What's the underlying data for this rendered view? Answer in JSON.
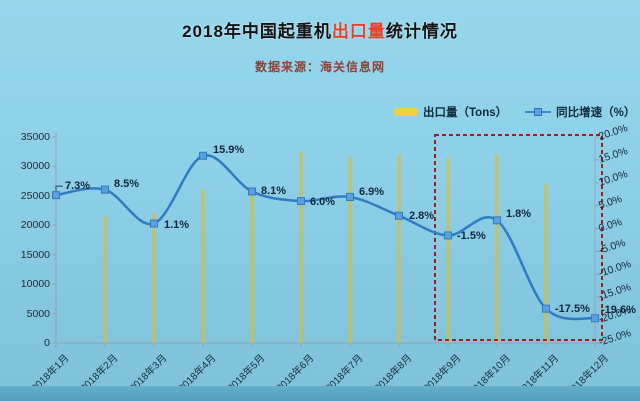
{
  "title": {
    "prefix": "2018年中国起重机",
    "highlight": "出口量",
    "suffix": "统计情况"
  },
  "subtitle": "数据来源：海关信息网",
  "legend": [
    {
      "label": "出口量（Tons）",
      "swatch": "yellow-bar",
      "color": "#f2d13d"
    },
    {
      "label": "同比增速（%）",
      "swatch": "blue-line-marker",
      "color": "#3b86d1"
    }
  ],
  "colors": {
    "background": "#8ccfe6",
    "title_highlight": "#e8402a",
    "subtitle": "#8e4136",
    "bar": "#cdbd55",
    "line": "#2f7cc4",
    "marker_fill": "#5b9fdd",
    "highlight_box": "#a31d1d",
    "axis": "#8fa3ad"
  },
  "chart_data": {
    "type": "bar",
    "subtype": "combo-bar-line",
    "title": "2018年中国起重机出口量统计情况",
    "categories": [
      "2018年1月",
      "2018年2月",
      "2018年3月",
      "2018年4月",
      "2018年5月",
      "2018年6月",
      "2018年7月",
      "2018年8月",
      "2018年9月",
      "2018年10月",
      "2018年11月",
      "2018年12月"
    ],
    "series": [
      {
        "name": "出口量（Tons）",
        "type": "bar",
        "axis": "left",
        "color": "#cdbd55",
        "values": [
          null,
          21500,
          22000,
          26000,
          26000,
          32500,
          31500,
          32000,
          31500,
          32000,
          27000,
          null
        ]
      },
      {
        "name": "同比增速（%）",
        "type": "line",
        "axis": "right",
        "color": "#2f7cc4",
        "values": [
          7.3,
          8.5,
          1.1,
          15.9,
          8.1,
          6.0,
          6.9,
          2.8,
          -1.5,
          1.8,
          -17.5,
          -19.6
        ],
        "labels": [
          "7.3%",
          "8.5%",
          "1.1%",
          "15.9%",
          "8.1%",
          "6.0%",
          "6.9%",
          "2.8%",
          "-1.5%",
          "1.8%",
          "-17.5%",
          "-19.6%"
        ]
      }
    ],
    "left_axis": {
      "min": 0,
      "max": 35000,
      "step": 5000,
      "ticks": [
        "35000",
        "30000",
        "25000",
        "20000",
        "15000",
        "10000",
        "5000",
        "0"
      ]
    },
    "right_axis": {
      "min": -25,
      "max": 20,
      "step": 5,
      "ticks": [
        "20.0%",
        "15.0%",
        "10.0%",
        "5.0%",
        "0.0%",
        "-5.0%",
        "-10.0%",
        "-15.0%",
        "-20.0%",
        "-25.0%"
      ]
    },
    "highlight_box": {
      "from_month_index": 8,
      "to_month_index": 11
    },
    "grid": false,
    "legend_position": "top"
  }
}
